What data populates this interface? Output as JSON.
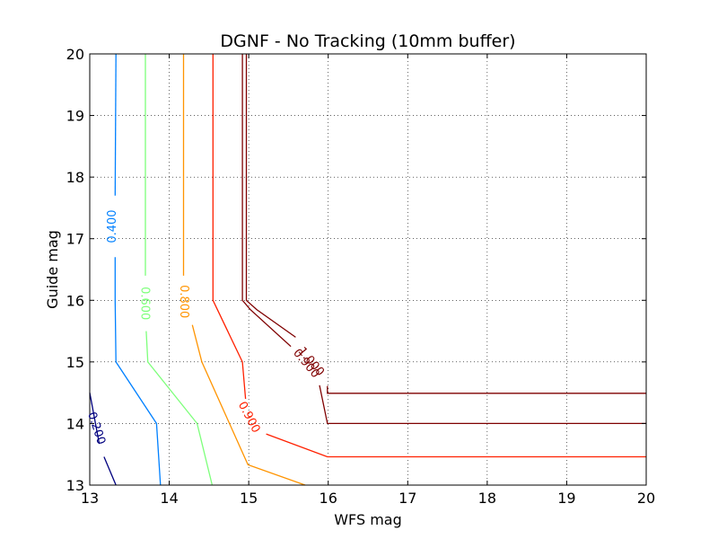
{
  "chart_data": {
    "type": "contour",
    "title": "DGNF - No Tracking (10mm buffer)",
    "xlabel": "WFS mag",
    "ylabel": "Guide mag",
    "xlim": [
      13,
      20
    ],
    "ylim": [
      13,
      20
    ],
    "x_ticks": [
      "13",
      "14",
      "15",
      "16",
      "17",
      "18",
      "19",
      "20"
    ],
    "y_ticks": [
      "13",
      "14",
      "15",
      "16",
      "17",
      "18",
      "19",
      "20"
    ],
    "grid": true,
    "contours": [
      {
        "level": "0.200",
        "color": "#00007f",
        "segments": [
          [
            [
              13.0,
              14.5
            ],
            [
              13.12,
              13.67
            ]
          ],
          [
            [
              13.18,
              13.46
            ],
            [
              13.33,
              13.0
            ]
          ]
        ],
        "label": {
          "text": "0.200",
          "at": [
            13.08,
            13.92
          ],
          "angle": 72
        }
      },
      {
        "level": "0.400",
        "color": "#0080ff",
        "segments": [
          [
            [
              13.33,
              20.0
            ],
            [
              13.32,
              17.7
            ]
          ],
          [
            [
              13.32,
              16.7
            ],
            [
              13.32,
              16.0
            ],
            [
              13.33,
              15.0
            ],
            [
              13.84,
              14.0
            ],
            [
              13.89,
              13.0
            ]
          ]
        ],
        "label": {
          "text": "0.400",
          "at": [
            13.29,
            17.2
          ],
          "angle": -90
        }
      },
      {
        "level": "0.600",
        "color": "#7dff7a",
        "segments": [
          [
            [
              13.7,
              20.0
            ],
            [
              13.7,
              16.4
            ]
          ],
          [
            [
              13.71,
              15.5
            ],
            [
              13.73,
              15.0
            ],
            [
              14.35,
              14.0
            ],
            [
              14.54,
              13.0
            ]
          ]
        ],
        "label": {
          "text": "0.600",
          "at": [
            13.69,
            15.95
          ],
          "angle": 90
        }
      },
      {
        "level": "0.800",
        "color": "#ff9400",
        "segments": [
          [
            [
              14.18,
              20.0
            ],
            [
              14.18,
              16.4
            ]
          ],
          [
            [
              14.29,
              15.6
            ],
            [
              14.41,
              15.0
            ],
            [
              14.99,
              13.33
            ],
            [
              15.71,
              13.0
            ]
          ]
        ],
        "label": {
          "text": "0.800",
          "at": [
            14.18,
            15.98
          ],
          "angle": 90
        }
      },
      {
        "level": "0.900",
        "color": "#ff2000",
        "segments": [
          [
            [
              14.55,
              20.0
            ],
            [
              14.55,
              16.0
            ],
            [
              14.92,
              15.0
            ],
            [
              14.96,
              14.4
            ]
          ],
          [
            [
              15.22,
              13.83
            ],
            [
              15.99,
              13.46
            ],
            [
              20.0,
              13.46
            ]
          ]
        ],
        "label": {
          "text": "0.900",
          "at": [
            15.0,
            14.1
          ],
          "angle": 62
        }
      },
      {
        "level": "0.900",
        "color": "#7f0000",
        "segments": [
          [
            [
              14.92,
              20.0
            ],
            [
              14.92,
              16.0
            ],
            [
              15.02,
              15.85
            ],
            [
              15.53,
              15.25
            ]
          ],
          [
            [
              15.89,
              14.62
            ],
            [
              15.99,
              14.0
            ],
            [
              20.0,
              14.0
            ]
          ]
        ],
        "label": {
          "text": "0.900",
          "at": [
            15.72,
            14.97
          ],
          "angle": 50
        }
      },
      {
        "level": "1.000",
        "color": "#7f0000",
        "segments": [
          [
            [
              14.97,
              20.0
            ],
            [
              14.97,
              16.0
            ],
            [
              15.1,
              15.85
            ],
            [
              15.59,
              15.4
            ]
          ],
          [
            [
              15.99,
              14.61
            ],
            [
              15.99,
              14.49
            ],
            [
              20.0,
              14.49
            ]
          ]
        ],
        "label": {
          "text": "1.000",
          "at": [
            15.78,
            15.0
          ],
          "angle": 50
        }
      }
    ]
  }
}
